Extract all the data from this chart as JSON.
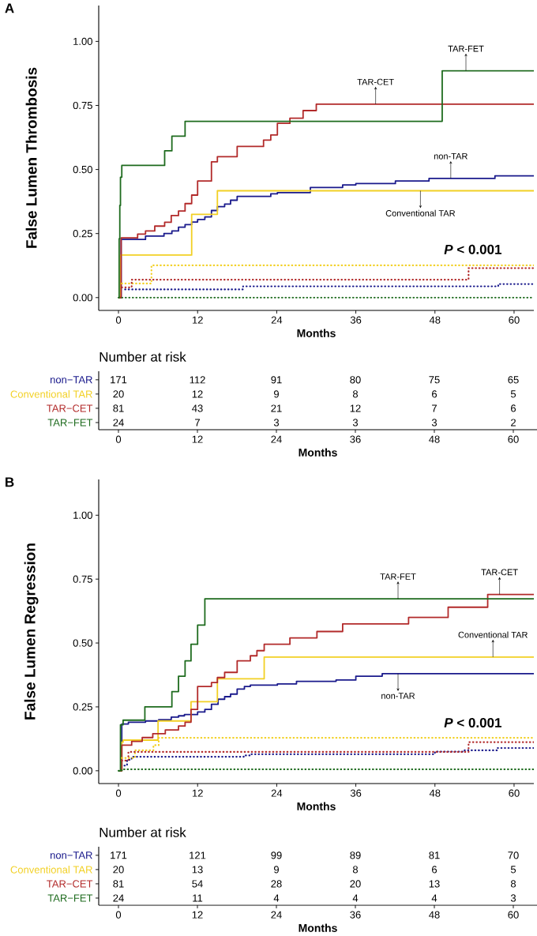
{
  "chart_data": [
    {
      "type": "step",
      "title": "A",
      "xlabel": "Months",
      "ylabel": "False Lumen Thrombosis",
      "xlim": [
        -3,
        63
      ],
      "ylim": [
        -0.05,
        1.14
      ],
      "xticks": [
        0,
        12,
        24,
        36,
        48,
        60
      ],
      "yticks": [
        {
          "value": 0,
          "label": "0.00"
        },
        {
          "value": 0.25,
          "label": "0.25"
        },
        {
          "value": 0.5,
          "label": "0.50"
        },
        {
          "value": 0.75,
          "label": "0.75"
        },
        {
          "value": 1,
          "label": "1.00"
        }
      ],
      "series": [
        {
          "color": "#1a1a8c",
          "line_style": "solid",
          "x": [
            0,
            0.4,
            4.1,
            6.9,
            8.1,
            9.1,
            10.1,
            11.1,
            12,
            13.1,
            14.1,
            15,
            16.1,
            17,
            18,
            23.1,
            24.1,
            29.1,
            34,
            36,
            42,
            47.1,
            57.1,
            63
          ],
          "values": [
            0,
            0.227,
            0.24,
            0.25,
            0.26,
            0.275,
            0.285,
            0.295,
            0.305,
            0.315,
            0.34,
            0.355,
            0.365,
            0.38,
            0.395,
            0.405,
            0.41,
            0.43,
            0.44,
            0.445,
            0.455,
            0.465,
            0.475,
            0.475
          ]
        },
        {
          "color": "#f2d024",
          "line_style": "solid",
          "x": [
            0,
            0.3,
            11.1,
            15,
            63
          ],
          "values": [
            0,
            0.166,
            0.325,
            0.417,
            0.417
          ]
        },
        {
          "color": "#b22a2a",
          "line_style": "solid",
          "x": [
            0,
            0.4,
            2.9,
            4.1,
            5.5,
            7.0,
            8.0,
            9.1,
            10.1,
            11.1,
            12,
            14.1,
            15,
            18,
            22,
            23.1,
            24.1,
            26,
            28,
            30,
            63
          ],
          "values": [
            0,
            0.233,
            0.248,
            0.26,
            0.279,
            0.294,
            0.32,
            0.338,
            0.367,
            0.4,
            0.455,
            0.53,
            0.55,
            0.59,
            0.615,
            0.635,
            0.68,
            0.7,
            0.73,
            0.755,
            0.755
          ]
        },
        {
          "color": "#1e6b1e",
          "line_style": "solid",
          "x": [
            0,
            0.1,
            0.2,
            0.3,
            0.5,
            7.0,
            8.1,
            10.1,
            49.1,
            63
          ],
          "values": [
            0,
            0.23,
            0.36,
            0.47,
            0.516,
            0.573,
            0.63,
            0.688,
            0.885,
            0.885
          ]
        },
        {
          "color": "#1a1a8c",
          "line_style": "dotted",
          "x": [
            1,
            18.9,
            57.6,
            63
          ],
          "values": [
            0.032,
            0.044,
            0.053,
            0.053
          ]
        },
        {
          "color": "#f2d024",
          "line_style": "dotted",
          "x": [
            0.5,
            5,
            63
          ],
          "values": [
            0.055,
            0.126,
            0.126
          ]
        },
        {
          "color": "#b22a2a",
          "line_style": "dotted",
          "x": [
            0.5,
            2,
            53.1,
            63
          ],
          "values": [
            0.04,
            0.07,
            0.115,
            0.115
          ]
        },
        {
          "color": "#1e6b1e",
          "line_style": "dotted",
          "x": [
            0,
            63
          ],
          "values": [
            0,
            0
          ]
        }
      ],
      "annotations": [
        {
          "text": "TAR-FET",
          "x": 52.7,
          "y": 0.885
        },
        {
          "text": "TAR-CET",
          "x": 39.0,
          "y": 0.755
        },
        {
          "text": "non-TAR",
          "x": 50.4,
          "y": 0.465
        },
        {
          "text": "Conventional TAR",
          "x": 45.8,
          "y": 0.417
        },
        "*P* < 0.001"
      ]
    },
    {
      "type": "heatmap",
      "title": "Number at risk",
      "xlabel": "Months",
      "categories": [
        "0",
        "12",
        "24",
        "36",
        "48",
        "60"
      ],
      "y_categories": [
        "non−TAR",
        "Conventional TAR",
        "TAR−CET",
        "TAR−FET"
      ],
      "cells": [
        [
          171,
          112,
          91,
          80,
          75,
          65
        ],
        [
          20,
          12,
          9,
          8,
          6,
          5
        ],
        [
          81,
          43,
          21,
          12,
          7,
          6
        ],
        [
          24,
          7,
          3,
          3,
          3,
          2
        ]
      ],
      "data_labels": true
    },
    {
      "type": "step",
      "title": "B",
      "xlabel": "Months",
      "ylabel": "False Lumen Regression",
      "xlim": [
        -3,
        63
      ],
      "ylim": [
        -0.05,
        1.14
      ],
      "xticks": [
        0,
        12,
        24,
        36,
        48,
        60
      ],
      "yticks": [
        {
          "value": 0,
          "label": "0.00"
        },
        {
          "value": 0.25,
          "label": "0.25"
        },
        {
          "value": 0.5,
          "label": "0.50"
        },
        {
          "value": 0.75,
          "label": "0.75"
        },
        {
          "value": 1,
          "label": "1.00"
        }
      ],
      "series": [
        {
          "color": "#1a1a8c",
          "line_style": "solid",
          "x": [
            0,
            0.5,
            1.5,
            4.1,
            6.1,
            8,
            9.1,
            10,
            12,
            13.1,
            14.1,
            15.1,
            16.1,
            17,
            18,
            19.1,
            20,
            24.1,
            27,
            33,
            36,
            40,
            63
          ],
          "values": [
            0,
            0.183,
            0.19,
            0.195,
            0.2,
            0.21,
            0.215,
            0.22,
            0.23,
            0.24,
            0.26,
            0.28,
            0.29,
            0.3,
            0.32,
            0.33,
            0.335,
            0.34,
            0.35,
            0.355,
            0.37,
            0.38,
            0.38
          ]
        },
        {
          "color": "#f2d024",
          "line_style": "solid",
          "x": [
            0,
            0.5,
            0.7,
            6,
            11,
            15,
            22.1,
            63
          ],
          "values": [
            0,
            0.112,
            0.12,
            0.195,
            0.27,
            0.36,
            0.445,
            0.445
          ]
        },
        {
          "color": "#b22a2a",
          "line_style": "solid",
          "x": [
            0,
            0.5,
            2,
            3.6,
            5.2,
            7.1,
            9.1,
            10.1,
            11,
            12,
            14.1,
            15,
            16.1,
            18,
            20,
            21,
            22.1,
            26,
            30.1,
            34,
            44,
            50,
            56,
            63
          ],
          "values": [
            0,
            0.1,
            0.115,
            0.13,
            0.145,
            0.16,
            0.175,
            0.19,
            0.24,
            0.33,
            0.345,
            0.365,
            0.385,
            0.43,
            0.45,
            0.47,
            0.495,
            0.52,
            0.545,
            0.575,
            0.6,
            0.64,
            0.69,
            0.69
          ]
        },
        {
          "color": "#1e6b1e",
          "line_style": "solid",
          "x": [
            0,
            0.3,
            0.7,
            4,
            8.1,
            9.1,
            10.1,
            11,
            12,
            13.1,
            63
          ],
          "values": [
            0,
            0.18,
            0.198,
            0.25,
            0.31,
            0.37,
            0.43,
            0.495,
            0.57,
            0.673,
            0.673
          ]
        },
        {
          "color": "#1a1a8c",
          "line_style": "dotted",
          "x": [
            0.9,
            1.3,
            2,
            19,
            20,
            48,
            52.5,
            57.5,
            63
          ],
          "values": [
            0.02,
            0.043,
            0.055,
            0.06,
            0.065,
            0.075,
            0.08,
            0.089,
            0.089
          ]
        },
        {
          "color": "#f2d024",
          "line_style": "dotted",
          "x": [
            0.5,
            2.5,
            5.3,
            6.1,
            63
          ],
          "values": [
            0.05,
            0.08,
            0.1,
            0.129,
            0.129
          ]
        },
        {
          "color": "#b22a2a",
          "line_style": "dotted",
          "x": [
            0.5,
            1.5,
            53.1,
            63
          ],
          "values": [
            0.04,
            0.074,
            0.112,
            0.112
          ]
        },
        {
          "color": "#1e6b1e",
          "line_style": "dotted",
          "x": [
            0,
            0.5,
            63
          ],
          "values": [
            0,
            0.006,
            0.006
          ]
        }
      ],
      "annotations": [
        {
          "text": "TAR-FET",
          "x": 42.4,
          "y": 0.673
        },
        {
          "text": "TAR-CET",
          "x": 57.8,
          "y": 0.69
        },
        {
          "text": "Conventional TAR",
          "x": 56.8,
          "y": 0.445
        },
        {
          "text": "non-TAR",
          "x": 42.4,
          "y": 0.38
        },
        "*P* < 0.001"
      ]
    },
    {
      "type": "heatmap",
      "title": "Number at risk",
      "xlabel": "Months",
      "categories": [
        "0",
        "12",
        "24",
        "36",
        "48",
        "60"
      ],
      "y_categories": [
        "non−TAR",
        "Conventional TAR",
        "TAR−CET",
        "TAR−FET"
      ],
      "cells": [
        [
          171,
          121,
          99,
          89,
          81,
          70
        ],
        [
          20,
          13,
          9,
          8,
          6,
          5
        ],
        [
          81,
          54,
          28,
          20,
          13,
          8
        ],
        [
          24,
          11,
          4,
          4,
          4,
          3
        ]
      ],
      "data_labels": true
    }
  ]
}
